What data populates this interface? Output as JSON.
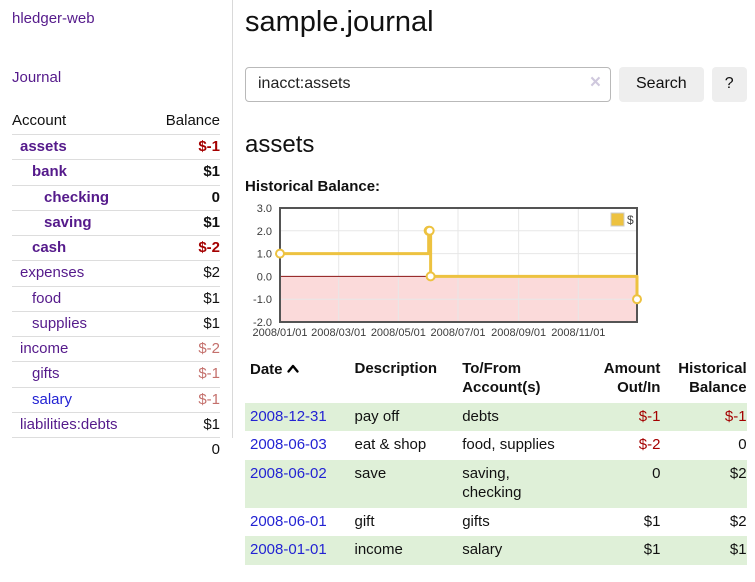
{
  "colors": {
    "purple_link": "#551a8b",
    "blue_link": "#2323d3",
    "negative_strong": "#a40000",
    "negative_soft": "#c4706c",
    "row_highlight_green": "#dff0d8",
    "chart_line_gold": "#edc240",
    "chart_negative_fill": "#fbdada",
    "chart_zero_line": "#8b1414",
    "button_bg": "#eeeeee"
  },
  "sidebar": {
    "app_title": "hledger-web",
    "nav": {
      "journal": "Journal"
    },
    "accounts_table": {
      "col_account": "Account",
      "col_balance": "Balance",
      "rows": [
        {
          "label": "assets",
          "balance": "$-1"
        },
        {
          "label": "bank",
          "balance": "$1"
        },
        {
          "label": "checking",
          "balance": "0"
        },
        {
          "label": "saving",
          "balance": "$1"
        },
        {
          "label": "cash",
          "balance": "$-2"
        },
        {
          "label": "expenses",
          "balance": "$2"
        },
        {
          "label": "food",
          "balance": "$1"
        },
        {
          "label": "supplies",
          "balance": "$1"
        },
        {
          "label": "income",
          "balance": "$-2"
        },
        {
          "label": "gifts",
          "balance": "$-1"
        },
        {
          "label": "salary",
          "balance": "$-1"
        },
        {
          "label": "liabilities:debts",
          "balance": "$1"
        }
      ],
      "total": "0"
    }
  },
  "header": {
    "title": "sample.journal"
  },
  "search": {
    "value": "inacct:assets",
    "clear_icon": "×",
    "search_button": "Search",
    "help_button": "?"
  },
  "account_page": {
    "heading": "assets",
    "chart_label": "Historical Balance:"
  },
  "chart_data": {
    "type": "line",
    "step": true,
    "title": "Historical Balance:",
    "series": [
      {
        "name": "$",
        "color": "#edc240",
        "points": [
          [
            "2008-01-01",
            1
          ],
          [
            "2008-06-01",
            2
          ],
          [
            "2008-06-02",
            2
          ],
          [
            "2008-06-03",
            0
          ],
          [
            "2008-12-31",
            -1
          ]
        ]
      }
    ],
    "x_range": [
      "2008-01-01",
      "2008-12-31"
    ],
    "ylim": [
      -2,
      3
    ],
    "yticks": [
      3.0,
      2.0,
      1.0,
      0.0,
      -1.0,
      -2.0
    ],
    "xticks": [
      {
        "date": "2008-01-01",
        "label": "2008/01/01"
      },
      {
        "date": "2008-03-01",
        "label": "2008/03/01"
      },
      {
        "date": "2008-05-01",
        "label": "2008/05/01"
      },
      {
        "date": "2008-07-01",
        "label": "2008/07/01"
      },
      {
        "date": "2008-09-01",
        "label": "2008/09/01"
      },
      {
        "date": "2008-11-01",
        "label": "2008/11/01"
      }
    ],
    "legend": {
      "label": "$",
      "position": "top-right"
    },
    "grid": true,
    "negative_region_fill": "#fbdada",
    "zero_line_color": "#8b1414"
  },
  "register": {
    "columns": {
      "date": "Date",
      "description": "Description",
      "accounts": "To/From Account(s)",
      "amount": "Amount Out/In",
      "balance": "Historical Balance"
    },
    "rows": [
      {
        "date": "2008-12-31",
        "description": "pay off",
        "accounts": "debts",
        "amount": "$-1",
        "balance": "$-1"
      },
      {
        "date": "2008-06-03",
        "description": "eat & shop",
        "accounts": "food, supplies",
        "amount": "$-2",
        "balance": "0"
      },
      {
        "date": "2008-06-02",
        "description": "save",
        "accounts": "saving, checking",
        "amount": "0",
        "balance": "$2"
      },
      {
        "date": "2008-06-01",
        "description": "gift",
        "accounts": "gifts",
        "amount": "$1",
        "balance": "$2"
      },
      {
        "date": "2008-01-01",
        "description": "income",
        "accounts": "salary",
        "amount": "$1",
        "balance": "$1"
      }
    ]
  }
}
